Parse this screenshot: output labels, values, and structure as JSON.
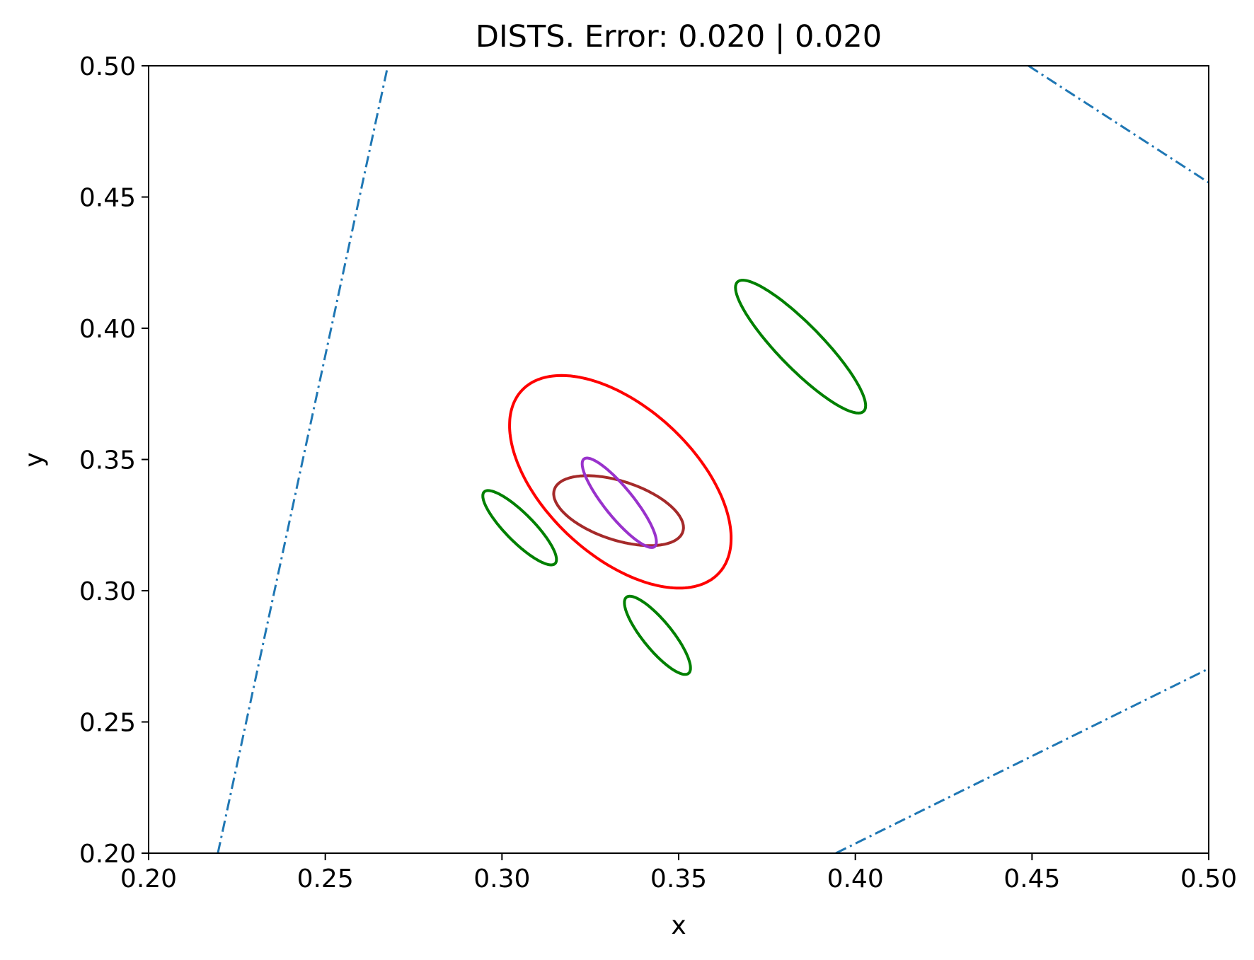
{
  "chart_data": {
    "type": "line",
    "title": "DISTS. Error: 0.020 | 0.020",
    "xlabel": "x",
    "ylabel": "y",
    "xlim": [
      0.2,
      0.5
    ],
    "ylim": [
      0.2,
      0.5
    ],
    "grid": false,
    "xticks": [
      "0.20",
      "0.25",
      "0.30",
      "0.35",
      "0.40",
      "0.45",
      "0.50"
    ],
    "yticks": [
      "0.20",
      "0.25",
      "0.30",
      "0.35",
      "0.40",
      "0.45",
      "0.50"
    ],
    "boundary_lines": [
      {
        "color": "#1f77b4",
        "style": "dashdot",
        "x": [
          0.2196,
          0.2677
        ],
        "y": [
          0.2,
          0.5
        ]
      },
      {
        "color": "#1f77b4",
        "style": "dashdot",
        "x": [
          0.449,
          0.5
        ],
        "y": [
          0.5,
          0.4555
        ]
      },
      {
        "color": "#1f77b4",
        "style": "dashdot",
        "x": [
          0.3945,
          0.5
        ],
        "y": [
          0.2,
          0.2703
        ]
      }
    ],
    "ellipses": [
      {
        "color": "#ff0000",
        "cx": 0.3335,
        "cy": 0.3415,
        "rx": 0.0237,
        "ry": 0.0454,
        "rotation_deg": 32
      },
      {
        "color": "#a52a2a",
        "cx": 0.333,
        "cy": 0.3305,
        "rx": 0.0107,
        "ry": 0.02,
        "rotation_deg": 62
      },
      {
        "color": "#9932cc",
        "cx": 0.3332,
        "cy": 0.3335,
        "rx": 0.0045,
        "ry": 0.0195,
        "rotation_deg": 30
      },
      {
        "color": "#008000",
        "cx": 0.3845,
        "cy": 0.393,
        "rx": 0.007,
        "ry": 0.0305,
        "rotation_deg": 35
      },
      {
        "color": "#008000",
        "cx": 0.305,
        "cy": 0.324,
        "rx": 0.0045,
        "ry": 0.017,
        "rotation_deg": 35
      },
      {
        "color": "#008000",
        "cx": 0.344,
        "cy": 0.283,
        "rx": 0.0045,
        "ry": 0.017,
        "rotation_deg": 30
      }
    ]
  }
}
